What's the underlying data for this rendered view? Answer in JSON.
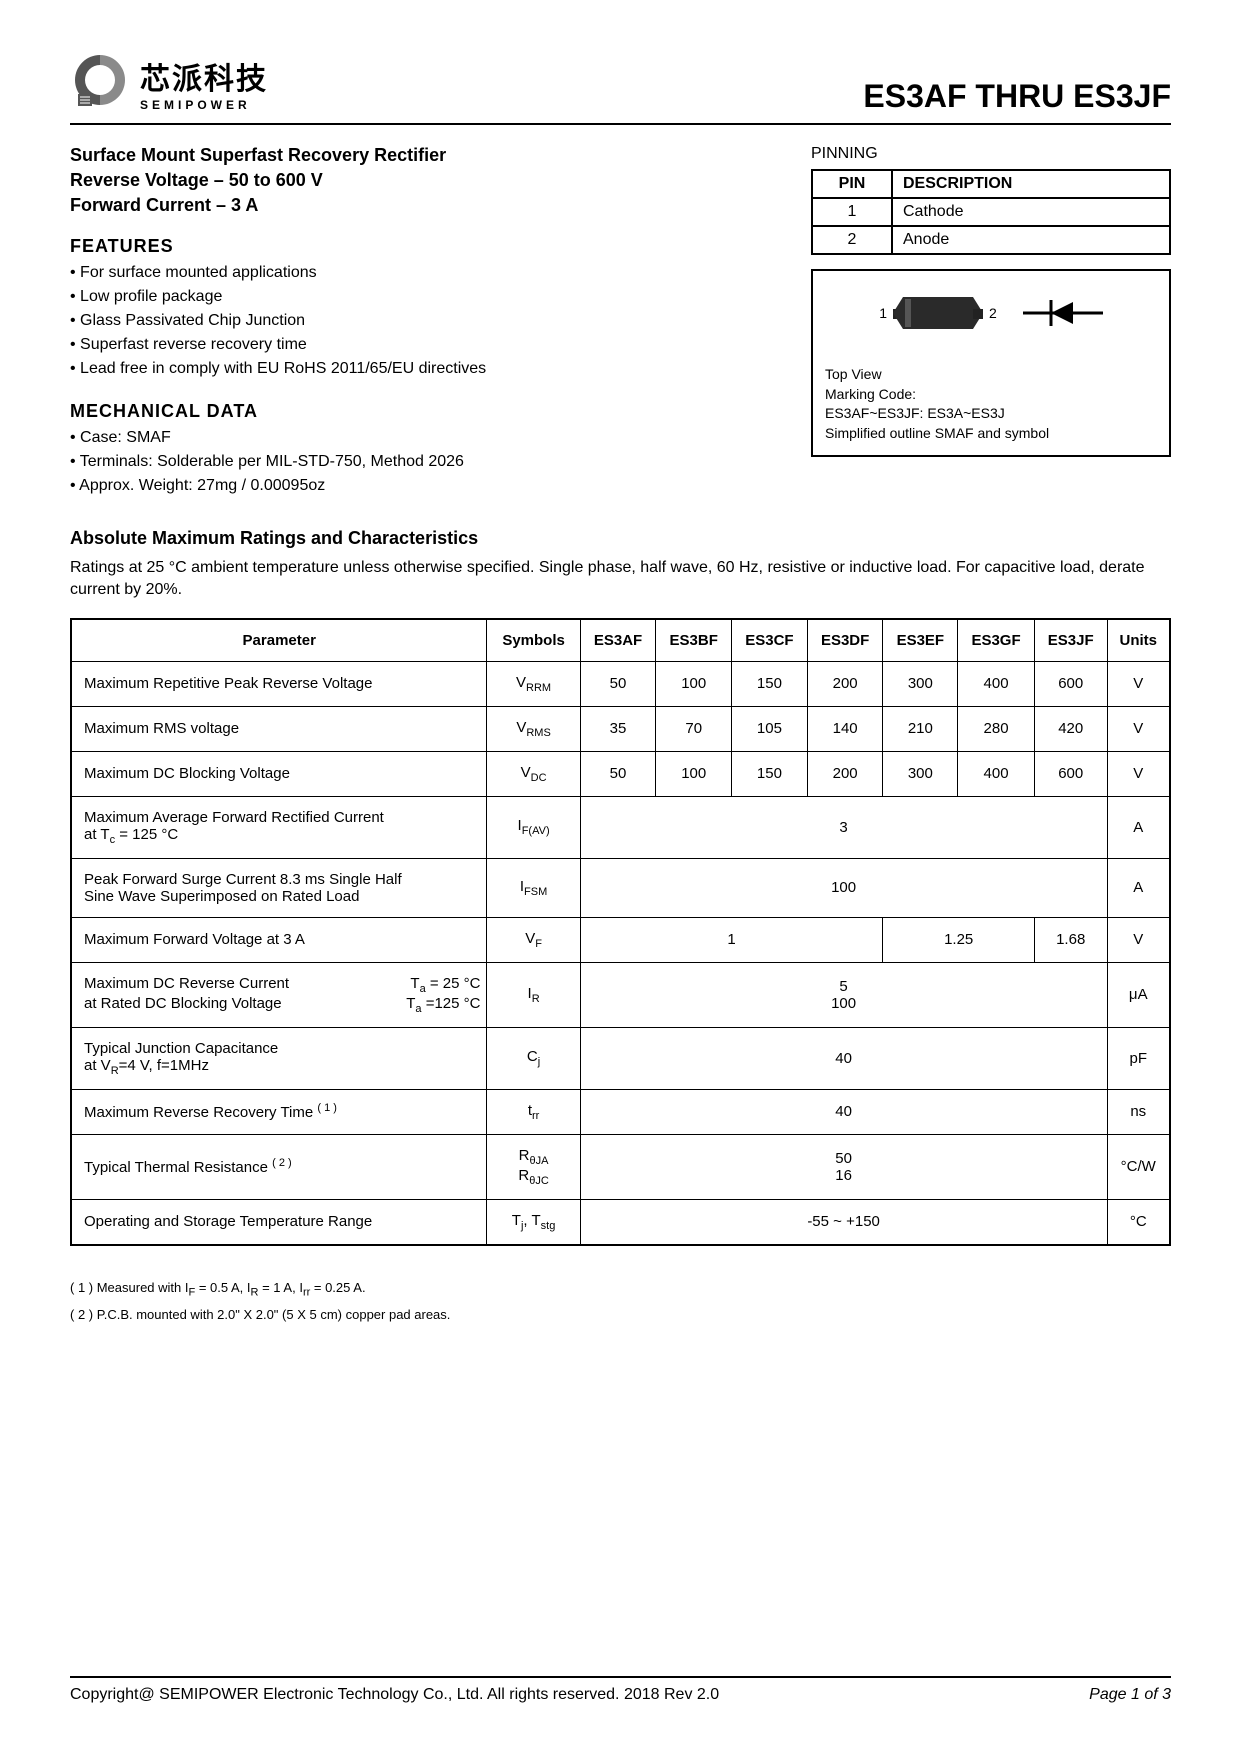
{
  "header": {
    "logo_cn": "芯派科技",
    "logo_en": "SEMIPOWER",
    "part_number": "ES3AF  THRU  ES3JF"
  },
  "subtitle": "Surface Mount Superfast Recovery Rectifier",
  "spec_lines": [
    "Reverse Voltage – 50 to 600 V",
    "Forward Current – 3 A"
  ],
  "features": {
    "heading": "FEATURES",
    "items": [
      "For surface mounted applications",
      "Low profile package",
      "Glass Passivated Chip Junction",
      "Superfast reverse recovery time",
      "Lead free in comply with EU RoHS 2011/65/EU directives"
    ]
  },
  "mechanical": {
    "heading": "MECHANICAL DATA",
    "items": [
      "Case: SMAF",
      "Terminals: Solderable per MIL-STD-750, Method 2026",
      "Approx. Weight: 27mg / 0.00095oz"
    ]
  },
  "pinning": {
    "label": "PINNING",
    "col_pin": "PIN",
    "col_desc": "DESCRIPTION",
    "rows": [
      {
        "pin": "1",
        "desc": "Cathode"
      },
      {
        "pin": "2",
        "desc": "Anode"
      }
    ]
  },
  "diagram": {
    "pin1": "1",
    "pin2": "2",
    "caption_lines": [
      "Top View",
      "Marking Code:",
      "ES3AF~ES3JF: ES3A~ES3J",
      "Simplified outline SMAF and symbol"
    ]
  },
  "ratings": {
    "heading": "Absolute Maximum Ratings and Characteristics",
    "note": "Ratings at 25 °C ambient temperature unless otherwise specified. Single phase, half wave, 60 Hz, resistive or inductive load. For capacitive load, derate current by 20%.",
    "headers": [
      "Parameter",
      "Symbols",
      "ES3AF",
      "ES3BF",
      "ES3CF",
      "ES3DF",
      "ES3EF",
      "ES3GF",
      "ES3JF",
      "Units"
    ],
    "rows": [
      {
        "param": "Maximum Repetitive Peak Reverse Voltage",
        "symbol": "V<sub class='sub'>RRM</sub>",
        "cells": [
          "50",
          "100",
          "150",
          "200",
          "300",
          "400",
          "600"
        ],
        "unit": "V"
      },
      {
        "param": "Maximum RMS voltage",
        "symbol": "V<sub class='sub'>RMS</sub>",
        "cells": [
          "35",
          "70",
          "105",
          "140",
          "210",
          "280",
          "420"
        ],
        "unit": "V"
      },
      {
        "param": "Maximum DC Blocking Voltage",
        "symbol": "V<sub class='sub'>DC</sub>",
        "cells": [
          "50",
          "100",
          "150",
          "200",
          "300",
          "400",
          "600"
        ],
        "unit": "V"
      },
      {
        "param": "Maximum Average Forward Rectified Current<br>at T<sub class='sub'>c</sub> = 125 °C",
        "symbol": "I<sub class='sub'>F(AV)</sub>",
        "merged": "3",
        "unit": "A"
      },
      {
        "param": "Peak Forward Surge Current 8.3 ms Single Half<br>Sine Wave Superimposed on Rated Load",
        "symbol": "I<sub class='sub'>FSM</sub>",
        "merged": "100",
        "unit": "A"
      },
      {
        "param": "Maximum  Forward Voltage at 3 A",
        "symbol": "V<sub class='sub'>F</sub>",
        "vf": true,
        "unit": "V",
        "vf_a": "1",
        "vf_b": "1.25",
        "vf_c": "1.68"
      },
      {
        "param": "<div class='param-two-col'><span>Maximum DC Reverse Current</span><span>T<sub class='sub'>a</sub> = 25 °C</span></div><div class='param-two-col'><span>at Rated DC Blocking Voltage</span><span>T<sub class='sub'>a</sub> =125 °C</span></div>",
        "symbol": "I<sub class='sub'>R</sub>",
        "merged": "<div class='multi-line'><span>5</span><span>100</span></div>",
        "unit": "μA"
      },
      {
        "param": "Typical Junction Capacitance<br>at V<sub class='sub'>R</sub>=4 V, f=1MHz",
        "symbol": "C<sub class='sub'>j</sub>",
        "merged": "40",
        "unit": "pF"
      },
      {
        "param": "Maximum Reverse Recovery Time <sup class='sup'>( 1 )</sup>",
        "symbol": "t<sub class='sub'>rr</sub>",
        "merged": "40",
        "unit": "ns"
      },
      {
        "param": "Typical Thermal Resistance <sup class='sup'>( 2 )</sup>",
        "symbol": "<div class='multi-line'><span>R<sub class='sub'>θJA</sub></span><span>R<sub class='sub'>θJC</sub></span></div>",
        "merged": "<div class='multi-line'><span>50</span><span>16</span></div>",
        "unit": "°C/W"
      },
      {
        "param": "Operating and Storage Temperature Range",
        "symbol": "T<sub class='sub'>j</sub>, T<sub class='sub'>stg</sub>",
        "merged": "-55 ~ +150",
        "unit": "°C"
      }
    ]
  },
  "footnotes": [
    "( 1 ) Measured with I<sub class='sub'>F</sub> = 0.5 A, I<sub class='sub'>R</sub> = 1 A, I<sub class='sub'>rr</sub> = 0.25 A.",
    "( 2 ) P.C.B. mounted with 2.0\" X 2.0\" (5 X 5 cm) copper pad areas."
  ],
  "footer": {
    "copyright": "Copyright@ SEMIPOWER Electronic Technology Co., Ltd.  All rights reserved.  2018  Rev  2.0",
    "page": "Page 1 of 3"
  },
  "colors": {
    "text": "#000000",
    "bg": "#ffffff",
    "logo_gray": "#8a8a8a",
    "logo_dark": "#555555"
  }
}
